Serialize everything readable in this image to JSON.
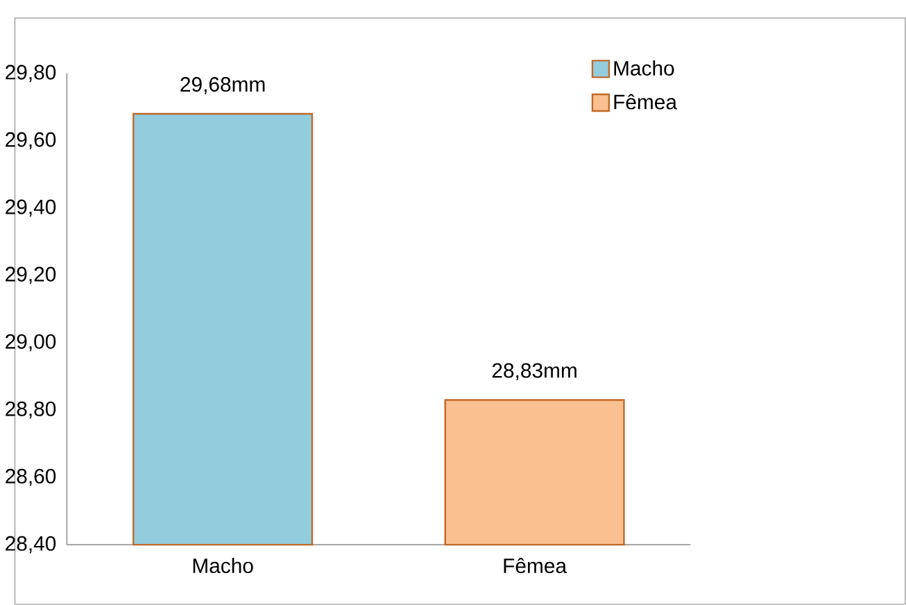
{
  "chart_data": {
    "type": "bar",
    "categories": [
      "Macho",
      "Fêmea"
    ],
    "series": [
      {
        "name": "Macho",
        "color": "#93cddd",
        "values": [
          29.68,
          null
        ],
        "value_labels": [
          "29,68mm",
          null
        ]
      },
      {
        "name": "Fêmea",
        "color": "#fac090",
        "values": [
          null,
          28.83
        ],
        "value_labels": [
          null,
          "28,83mm"
        ]
      }
    ],
    "ylim": [
      28.4,
      29.8
    ],
    "yticks": [
      {
        "value": 28.4,
        "label": "28,40"
      },
      {
        "value": 28.6,
        "label": "28,60"
      },
      {
        "value": 28.8,
        "label": "28,80"
      },
      {
        "value": 29.0,
        "label": "29,00"
      },
      {
        "value": 29.2,
        "label": "29,20"
      },
      {
        "value": 29.4,
        "label": "29,40"
      },
      {
        "value": 29.6,
        "label": "29,60"
      },
      {
        "value": 29.8,
        "label": "29,80"
      }
    ],
    "grid": false,
    "legend": "top right"
  }
}
